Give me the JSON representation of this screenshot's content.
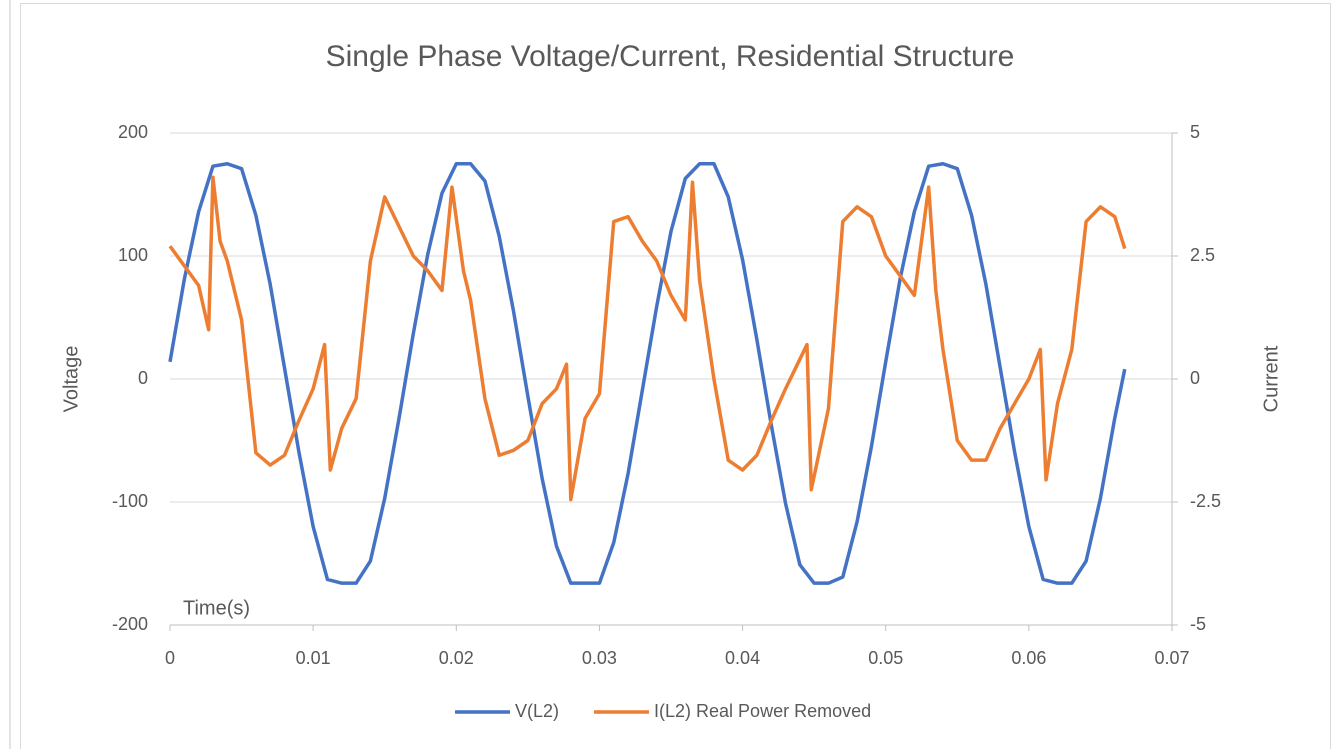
{
  "chart_data": {
    "type": "line",
    "title": "Single Phase Voltage/Current, Residential Structure",
    "y_label": "Voltage",
    "y2_label": "Current",
    "annotation": "Time(s)",
    "xlim": [
      0,
      0.07
    ],
    "xticks": [
      0,
      0.01,
      0.02,
      0.03,
      0.04,
      0.05,
      0.06,
      0.07
    ],
    "ylim": [
      -200,
      200
    ],
    "yticks": [
      -200,
      -100,
      0,
      100,
      200
    ],
    "y2lim": [
      -5,
      5
    ],
    "y2ticks": [
      -5,
      -2.5,
      0,
      2.5,
      5
    ],
    "grid": true,
    "legend": "bottom",
    "series": [
      {
        "name": "V(L2)",
        "color": "#4472c4",
        "x": [
          0,
          0.001,
          0.002,
          0.003,
          0.004,
          0.005,
          0.006,
          0.007,
          0.008,
          0.009,
          0.01,
          0.011,
          0.012,
          0.013,
          0.014,
          0.015,
          0.016,
          0.017,
          0.018,
          0.019,
          0.02,
          0.021,
          0.022,
          0.023,
          0.024,
          0.025,
          0.026,
          0.027,
          0.028,
          0.029,
          0.03,
          0.031,
          0.032,
          0.033,
          0.034,
          0.035,
          0.036,
          0.037,
          0.038,
          0.039,
          0.04,
          0.041,
          0.042,
          0.043,
          0.044,
          0.045,
          0.046,
          0.047,
          0.048,
          0.049,
          0.05,
          0.051,
          0.052,
          0.053,
          0.054,
          0.055,
          0.056,
          0.057,
          0.058,
          0.059,
          0.06,
          0.061,
          0.062,
          0.063,
          0.064,
          0.065,
          0.066,
          0.0667
        ],
        "values": [
          14,
          81,
          136,
          173,
          175,
          171,
          133,
          77,
          9,
          -59,
          -120,
          -163,
          -166,
          -166,
          -148,
          -97,
          -32,
          37,
          101,
          151,
          175,
          175,
          161,
          116,
          55,
          -14,
          -81,
          -136,
          -166,
          -166,
          -166,
          -133,
          -77,
          -9,
          59,
          120,
          163,
          175,
          175,
          148,
          97,
          32,
          -37,
          -101,
          -151,
          -166,
          -166,
          -161,
          -116,
          -55,
          14,
          81,
          136,
          173,
          175,
          171,
          133,
          77,
          9,
          -59,
          -120,
          -163,
          -166,
          -166,
          -148,
          -97,
          -32,
          8
        ]
      },
      {
        "name": "I(L2) Real Power Removed",
        "color": "#ed7d31",
        "axis": "y2",
        "x": [
          0,
          0.001,
          0.002,
          0.0027,
          0.003,
          0.0035,
          0.004,
          0.005,
          0.006,
          0.007,
          0.008,
          0.009,
          0.01,
          0.0108,
          0.0112,
          0.012,
          0.013,
          0.014,
          0.015,
          0.016,
          0.017,
          0.018,
          0.019,
          0.0197,
          0.0205,
          0.021,
          0.022,
          0.023,
          0.024,
          0.025,
          0.026,
          0.027,
          0.0277,
          0.028,
          0.029,
          0.03,
          0.031,
          0.032,
          0.033,
          0.034,
          0.035,
          0.036,
          0.0365,
          0.037,
          0.038,
          0.039,
          0.04,
          0.041,
          0.042,
          0.043,
          0.044,
          0.0445,
          0.0448,
          0.046,
          0.047,
          0.048,
          0.049,
          0.05,
          0.051,
          0.052,
          0.053,
          0.0535,
          0.054,
          0.055,
          0.056,
          0.057,
          0.058,
          0.059,
          0.06,
          0.0608,
          0.0612,
          0.062,
          0.063,
          0.064,
          0.065,
          0.066,
          0.0667
        ],
        "values": [
          2.7,
          2.3,
          1.9,
          1.0,
          4.1,
          2.8,
          2.4,
          1.2,
          -1.5,
          -1.75,
          -1.55,
          -0.85,
          -0.2,
          0.7,
          -1.85,
          -1.0,
          -0.4,
          2.4,
          3.7,
          3.1,
          2.5,
          2.2,
          1.8,
          3.9,
          2.2,
          1.6,
          -0.4,
          -1.55,
          -1.45,
          -1.25,
          -0.5,
          -0.2,
          0.3,
          -2.45,
          -0.8,
          -0.3,
          3.2,
          3.3,
          2.8,
          2.4,
          1.7,
          1.2,
          4.0,
          2.0,
          0,
          -1.65,
          -1.85,
          -1.55,
          -0.85,
          -0.2,
          0.4,
          0.7,
          -2.25,
          -0.6,
          3.2,
          3.5,
          3.3,
          2.5,
          2.1,
          1.7,
          3.9,
          1.8,
          0.6,
          -1.25,
          -1.65,
          -1.65,
          -1.0,
          -0.5,
          0,
          0.6,
          -2.05,
          -0.5,
          0.6,
          3.2,
          3.5,
          3.3,
          2.65
        ]
      }
    ]
  }
}
